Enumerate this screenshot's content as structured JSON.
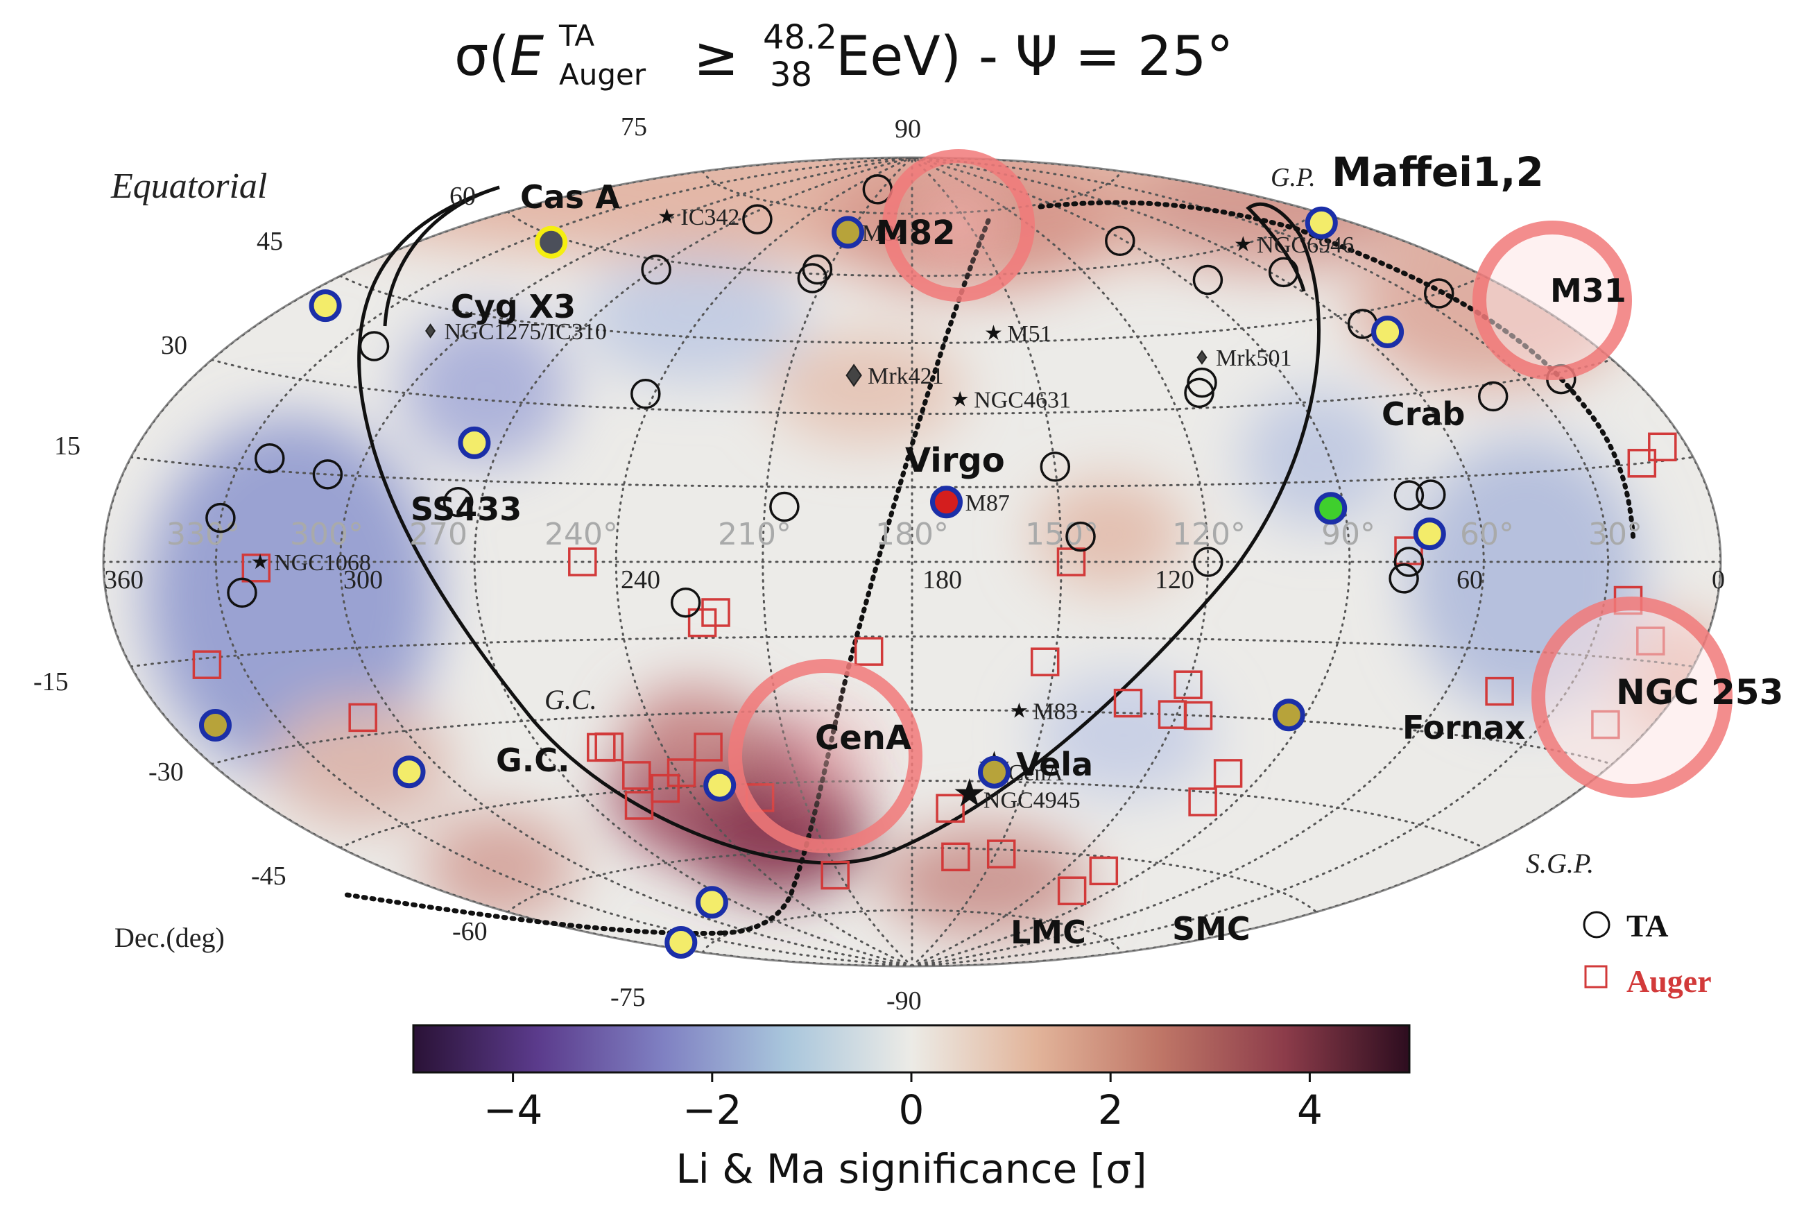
{
  "chart_data": {
    "type": "scatter",
    "projection": "Hammer-Aitoff equatorial sky map",
    "title": {
      "sigma": "σ(",
      "E": "E",
      "sup": "TA",
      "sub": "Auger",
      "geq": " ≥ ",
      "upper": "48.2",
      "lower": "38",
      "unit": " EeV) - Ψ = 25°"
    },
    "frame_label": "Equatorial",
    "dec_axis_label": "Dec.(deg)",
    "dec_labels": [
      {
        "text": "90",
        "dec": 90
      },
      {
        "text": "75",
        "dec": 75
      },
      {
        "text": "60",
        "dec": 60
      },
      {
        "text": "45",
        "dec": 45
      },
      {
        "text": "30",
        "dec": 30
      },
      {
        "text": "15",
        "dec": 15
      },
      {
        "text": "-15",
        "dec": -15
      },
      {
        "text": "-30",
        "dec": -30
      },
      {
        "text": "-45",
        "dec": -45
      },
      {
        "text": "-60",
        "dec": -60
      },
      {
        "text": "-75",
        "dec": -75
      },
      {
        "text": "-90",
        "dec": -90
      }
    ],
    "ra_labels": [
      {
        "text": "360",
        "ra": 360
      },
      {
        "text": "300",
        "ra": 300
      },
      {
        "text": "240",
        "ra": 240
      },
      {
        "text": "180",
        "ra": 180
      },
      {
        "text": "120",
        "ra": 120
      },
      {
        "text": "60",
        "ra": 60
      },
      {
        "text": "0",
        "ra": 0
      }
    ],
    "galactic_lon_labels": [
      {
        "text": "330°"
      },
      {
        "text": "300°"
      },
      {
        "text": "270"
      },
      {
        "text": "240°"
      },
      {
        "text": "210°"
      },
      {
        "text": "180°"
      },
      {
        "text": "150°"
      },
      {
        "text": "120°"
      },
      {
        "text": "90°"
      },
      {
        "text": "60°"
      },
      {
        "text": "30°"
      }
    ],
    "plane_labels": [
      {
        "text": "G.P."
      },
      {
        "text": "G.C."
      },
      {
        "text": "S.G.P."
      }
    ],
    "colorbar": {
      "label": "Li & Ma significance [σ]",
      "ticks": [
        "−4",
        "−2",
        "0",
        "2",
        "4"
      ],
      "tick_values": [
        -4,
        -2,
        0,
        2,
        4
      ],
      "range": [
        -5,
        5
      ],
      "colors": [
        "#2a1236",
        "#5b3b8c",
        "#7f80c2",
        "#a9c6dc",
        "#ecebe6",
        "#e2b49a",
        "#bf7667",
        "#8c3c4a",
        "#2d0d1f"
      ]
    },
    "legend": {
      "placement": "bottom-right",
      "items": [
        {
          "label": "TA",
          "marker": "black open circle"
        },
        {
          "label": "Auger",
          "marker": "red open square",
          "color": "#d23a3a"
        }
      ]
    },
    "source_catalogue": [
      {
        "name": "NGC6946",
        "ra": 309,
        "dec": 60
      },
      {
        "name": "M82",
        "ra": 149,
        "dec": 70
      },
      {
        "name": "IC342",
        "ra": 57,
        "dec": 68
      },
      {
        "name": "M51",
        "ra": 202,
        "dec": 47
      },
      {
        "name": "Mrk501",
        "ra": 253,
        "dec": 40
      },
      {
        "name": "Mrk421",
        "ra": 166,
        "dec": 38
      },
      {
        "name": "NGC4631",
        "ra": 191,
        "dec": 33
      },
      {
        "name": "NGC1275/IC310",
        "ra": 50,
        "dec": 41
      },
      {
        "name": "M87",
        "ra": 188,
        "dec": 12
      },
      {
        "name": "NGC1068",
        "ra": 41,
        "dec": 0
      },
      {
        "name": "M83",
        "ra": 204,
        "dec": -30
      },
      {
        "name": "CenA",
        "ra": 201,
        "dec": -43
      },
      {
        "name": "NGC4945",
        "ra": 196,
        "dec": -49
      }
    ],
    "highlighted_sources": [
      {
        "name": "Cas A",
        "ra": 351,
        "dec": 58.8
      },
      {
        "name": "Cyg X3",
        "ra": 308,
        "dec": 41
      },
      {
        "name": "SS433",
        "ra": 288,
        "dec": 5
      },
      {
        "name": "G.C.",
        "ra": 266,
        "dec": -29
      },
      {
        "name": "Virgo",
        "ra": 187,
        "dec": 12
      },
      {
        "name": "M82",
        "ra": 149,
        "dec": 70
      },
      {
        "name": "CenA",
        "ra": 201,
        "dec": -43
      },
      {
        "name": "Vela",
        "ra": 129,
        "dec": -45
      },
      {
        "name": "Crab",
        "ra": 84,
        "dec": 22
      },
      {
        "name": "M31",
        "ra": 11,
        "dec": 41
      },
      {
        "name": "Fornax",
        "ra": 51,
        "dec": -37
      },
      {
        "name": "NGC 253",
        "ra": 12,
        "dec": -25
      },
      {
        "name": "LMC",
        "ra": 80,
        "dec": -69
      },
      {
        "name": "SMC",
        "ra": 13,
        "dec": -73
      },
      {
        "name": "Maffei1,2",
        "ra": 40,
        "dec": 59
      }
    ],
    "circled_regions": [
      "M82",
      "CenA",
      "M31",
      "NGC 253"
    ],
    "ta_events": [
      {
        "ra": 146,
        "dec": 81
      },
      {
        "ra": 98,
        "dec": 71
      },
      {
        "ra": 268,
        "dec": 65
      },
      {
        "ra": 277,
        "dec": 55
      },
      {
        "ra": 304,
        "dec": 54
      },
      {
        "ra": 146,
        "dec": 61
      },
      {
        "ra": 146,
        "dec": 59
      },
      {
        "ra": 91,
        "dec": 58
      },
      {
        "ra": 338,
        "dec": 45
      },
      {
        "ra": 304,
        "dec": 43
      },
      {
        "ra": 118,
        "dec": 33
      },
      {
        "ra": 249,
        "dec": 35
      },
      {
        "ra": 247,
        "dec": 33
      },
      {
        "ra": 340,
        "dec": 29
      },
      {
        "ra": 318,
        "dec": 28
      },
      {
        "ra": 40,
        "dec": 37
      },
      {
        "ra": 210,
        "dec": 19
      },
      {
        "ra": 154,
        "dec": 11
      },
      {
        "ra": 85,
        "dec": 11
      },
      {
        "ra": 290,
        "dec": 12
      },
      {
        "ra": 285,
        "dec": 12
      },
      {
        "ra": 53,
        "dec": 15
      },
      {
        "ra": 37,
        "dec": 17
      },
      {
        "ra": 30,
        "dec": 7
      },
      {
        "ra": 214,
        "dec": 5
      },
      {
        "ra": 240,
        "dec": 0
      },
      {
        "ra": 36,
        "dec": -5
      },
      {
        "ra": 134,
        "dec": -8
      },
      {
        "ra": 282,
        "dec": -3
      },
      {
        "ra": 283,
        "dec": 0
      }
    ],
    "auger_events": [
      {
        "ra": 353,
        "dec": 17
      },
      {
        "ra": 345,
        "dec": 15
      },
      {
        "ra": 336,
        "dec": -6
      },
      {
        "ra": 345,
        "dec": -12
      },
      {
        "ra": 347,
        "dec": -25
      },
      {
        "ra": 313,
        "dec": -22
      },
      {
        "ra": 283,
        "dec": 2
      },
      {
        "ra": 212,
        "dec": 0
      },
      {
        "ra": 113,
        "dec": 0
      },
      {
        "ra": 40,
        "dec": -1
      },
      {
        "ra": 140,
        "dec": -10
      },
      {
        "ra": 137,
        "dec": -12
      },
      {
        "ra": 171,
        "dec": -18
      },
      {
        "ra": 208,
        "dec": -20
      },
      {
        "ra": 240,
        "dec": -24
      },
      {
        "ra": 228,
        "dec": -28
      },
      {
        "ra": 245,
        "dec": -30
      },
      {
        "ra": 239,
        "dec": -30
      },
      {
        "ra": 52,
        "dec": -27
      },
      {
        "ra": 21,
        "dec": -16
      },
      {
        "ra": 131,
        "dec": -37
      },
      {
        "ra": 107,
        "dec": -36
      },
      {
        "ra": 105,
        "dec": -36
      },
      {
        "ra": 121,
        "dec": -42
      },
      {
        "ra": 109,
        "dec": -42
      },
      {
        "ra": 138,
        "dec": -48
      },
      {
        "ra": 261,
        "dec": -41
      },
      {
        "ra": 261,
        "dec": -47
      },
      {
        "ra": 103,
        "dec": -48
      },
      {
        "ra": 114,
        "dec": -45
      },
      {
        "ra": 191,
        "dec": -51
      },
      {
        "ra": 212,
        "dec": -61
      },
      {
        "ra": 196,
        "dec": -62
      },
      {
        "ra": 148,
        "dec": -66
      },
      {
        "ra": 255,
        "dec": -63
      },
      {
        "ra": 254,
        "dec": -68
      }
    ]
  }
}
